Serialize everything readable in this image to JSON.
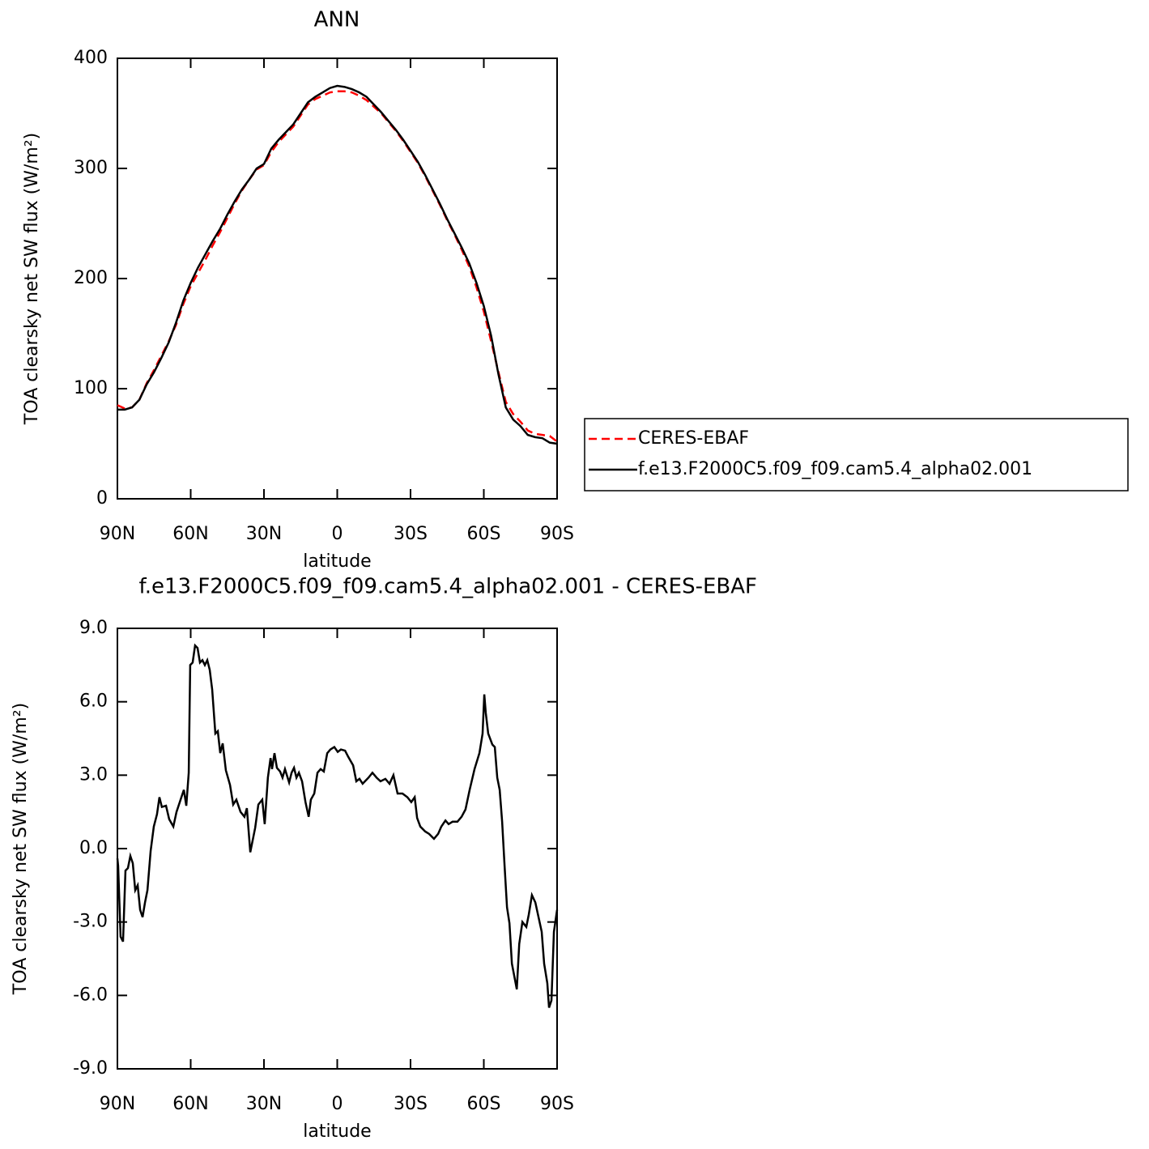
{
  "chart_data": [
    {
      "type": "line",
      "title": "ANN",
      "xlabel": "latitude",
      "ylabel": "TOA clearsky net SW flux (W/m²)",
      "xlim": [
        90,
        -90
      ],
      "xticks": [
        {
          "value": 90,
          "label": "90N"
        },
        {
          "value": 60,
          "label": "60N"
        },
        {
          "value": 30,
          "label": "30N"
        },
        0,
        {
          "value": -30,
          "label": "30S"
        },
        {
          "value": -60,
          "label": "60S"
        },
        {
          "value": -90,
          "label": "90S"
        }
      ],
      "ylim": [
        0,
        400
      ],
      "yticks": [
        0,
        100,
        200,
        300,
        400
      ],
      "legend": "right",
      "x": [
        90,
        87,
        84,
        81,
        78,
        75,
        72,
        69,
        66,
        63,
        60,
        57,
        54,
        51,
        48,
        45,
        42,
        39,
        36,
        33,
        30,
        27,
        24,
        21,
        18,
        15,
        12,
        9,
        6,
        3,
        0,
        -3,
        -6,
        -9,
        -12,
        -15,
        -18,
        -21,
        -24,
        -27,
        -30,
        -33,
        -36,
        -39,
        -42,
        -45,
        -48,
        -51,
        -54,
        -57,
        -60,
        -63,
        -66,
        -69,
        -72,
        -75,
        -78,
        -81,
        -84,
        -87,
        -90
      ],
      "series": [
        {
          "name": "CERES-EBAF",
          "color": "#ff0000",
          "style": "dashed",
          "values": [
            85,
            82,
            83,
            90,
            105,
            117,
            130,
            143,
            158,
            177,
            193,
            205,
            217,
            230,
            242,
            255,
            268,
            280,
            290,
            299,
            303,
            315,
            324,
            331,
            338,
            348,
            358,
            363,
            366,
            369,
            370,
            370,
            369,
            366,
            362,
            356,
            350,
            342,
            334,
            325,
            315,
            305,
            293,
            280,
            267,
            253,
            240,
            226,
            211,
            192,
            170,
            143,
            115,
            88,
            77,
            70,
            62,
            59,
            58,
            57,
            52
          ]
        },
        {
          "name": "f.e13.F2000C5.f09_f09.cam5.4_alpha02.001",
          "color": "#000000",
          "style": "solid",
          "values": [
            81,
            81,
            83,
            90,
            104,
            115,
            128,
            142,
            160,
            180,
            196,
            210,
            222,
            234,
            245,
            258,
            270,
            281,
            290,
            300,
            304,
            318,
            326,
            333,
            340,
            350,
            360,
            365,
            369,
            373,
            375,
            374,
            372,
            369,
            365,
            358,
            351,
            343,
            335,
            326,
            316,
            306,
            294,
            281,
            268,
            254,
            241,
            228,
            214,
            196,
            175,
            148,
            113,
            83,
            72,
            66,
            58,
            56,
            55,
            51,
            50
          ]
        }
      ]
    },
    {
      "type": "line",
      "title": "f.e13.F2000C5.f09_f09.cam5.4_alpha02.001 - CERES-EBAF",
      "xlabel": "latitude",
      "ylabel": "TOA clearsky net SW flux (W/m²)",
      "xlim": [
        90,
        -90
      ],
      "xticks": [
        {
          "value": 90,
          "label": "90N"
        },
        {
          "value": 60,
          "label": "60N"
        },
        {
          "value": 30,
          "label": "30N"
        },
        0,
        {
          "value": -30,
          "label": "30S"
        },
        {
          "value": -60,
          "label": "60S"
        },
        {
          "value": -90,
          "label": "90S"
        }
      ],
      "ylim": [
        -9,
        9
      ],
      "yticks": [
        {
          "value": -9,
          "label": "-9.0"
        },
        {
          "value": -6,
          "label": "-6.0"
        },
        {
          "value": -3,
          "label": "-3.0"
        },
        {
          "value": 0,
          "label": "0.0"
        },
        {
          "value": 3,
          "label": "3.0"
        },
        {
          "value": 6,
          "label": "6.0"
        },
        {
          "value": 9,
          "label": "9.0"
        }
      ],
      "x": [
        90,
        89.7,
        88.7,
        87.7,
        86.7,
        85.7,
        84.7,
        83.7,
        82.7,
        81.7,
        80.7,
        79.7,
        78.7,
        77.7,
        76.4,
        75.1,
        73.8,
        72.8,
        71.8,
        70.1,
        68.8,
        67.1,
        65.8,
        63.8,
        62.8,
        61.8,
        60.8,
        60.2,
        59.2,
        58.2,
        57.2,
        56.2,
        55.2,
        54.2,
        53.2,
        52.2,
        51.2,
        49.9,
        48.9,
        47.9,
        46.9,
        45.6,
        43.9,
        42.6,
        41.3,
        39.6,
        38,
        37,
        35.6,
        33.6,
        32.3,
        30.7,
        29.7,
        28.4,
        27.3,
        26.7,
        25.7,
        24.7,
        23.4,
        22.4,
        21.4,
        19.7,
        18.7,
        17.7,
        16.7,
        15.7,
        14.4,
        13,
        11.7,
        10.8,
        9.4,
        8.1,
        6.8,
        5.5,
        4.1,
        2.8,
        1.2,
        -0.2,
        -1.5,
        -3.2,
        -4.5,
        -6.5,
        -7.8,
        -9.1,
        -10.4,
        -12.8,
        -14.4,
        -16.1,
        -17.7,
        -19.7,
        -21.4,
        -23,
        -24.7,
        -26.7,
        -28.7,
        -30.3,
        -31.7,
        -32.7,
        -34,
        -36,
        -37.6,
        -39.6,
        -41.3,
        -42.6,
        -44.3,
        -45.6,
        -47.2,
        -49.2,
        -50.9,
        -52.5,
        -54.2,
        -56.2,
        -58.2,
        -59.5,
        -60.2,
        -60.8,
        -61.8,
        -63.5,
        -64.5,
        -65.5,
        -66.5,
        -67.5,
        -68.5,
        -69.5,
        -70.5,
        -71.5,
        -73.5,
        -74.5,
        -75.8,
        -77.4,
        -78.4,
        -79.7,
        -81.1,
        -82.4,
        -83.7,
        -84.7,
        -86,
        -86.7,
        -87.7,
        -88.7,
        -90
      ],
      "series": [
        {
          "color": "#000000",
          "style": "solid",
          "values": [
            -0.4,
            -0.7,
            -3.6,
            -3.8,
            -0.9,
            -0.8,
            -0.3,
            -0.6,
            -1.7,
            -1.5,
            -2.5,
            -2.8,
            -2.2,
            -1.7,
            -0.1,
            0.9,
            1.4,
            2.1,
            1.7,
            1.75,
            1.2,
            0.9,
            1.5,
            2.1,
            2.4,
            1.75,
            3.1,
            7.5,
            7.6,
            8.3,
            8.2,
            7.6,
            7.7,
            7.5,
            7.7,
            7.3,
            6.5,
            4.7,
            4.8,
            3.9,
            4.3,
            3.2,
            2.6,
            1.8,
            2,
            1.5,
            1.3,
            1.65,
            -0.15,
            0.85,
            1.8,
            2,
            1,
            2.9,
            3.7,
            3.25,
            3.9,
            3.3,
            3.15,
            2.9,
            3.25,
            2.7,
            3.1,
            3.3,
            2.9,
            3.1,
            2.75,
            1.9,
            1.3,
            2,
            2.25,
            3.1,
            3.25,
            3.15,
            3.9,
            4.05,
            4.15,
            3.95,
            4.05,
            4,
            3.75,
            3.4,
            2.75,
            2.85,
            2.65,
            2.9,
            3.1,
            2.9,
            2.75,
            2.85,
            2.65,
            3,
            2.25,
            2.25,
            2.1,
            1.9,
            2.1,
            1.25,
            0.9,
            0.7,
            0.6,
            0.4,
            0.6,
            0.9,
            1.15,
            1,
            1.1,
            1.1,
            1.3,
            1.6,
            2.4,
            3.25,
            3.9,
            4.7,
            6.3,
            5.55,
            4.7,
            4.25,
            4.15,
            2.9,
            2.4,
            1.1,
            -0.7,
            -2.4,
            -3.05,
            -4.7,
            -5.75,
            -3.9,
            -3,
            -3.2,
            -2.7,
            -1.9,
            -2.2,
            -2.8,
            -3.4,
            -4.7,
            -5.5,
            -6.5,
            -6.2,
            -3.4,
            -2.5
          ]
        }
      ]
    }
  ]
}
